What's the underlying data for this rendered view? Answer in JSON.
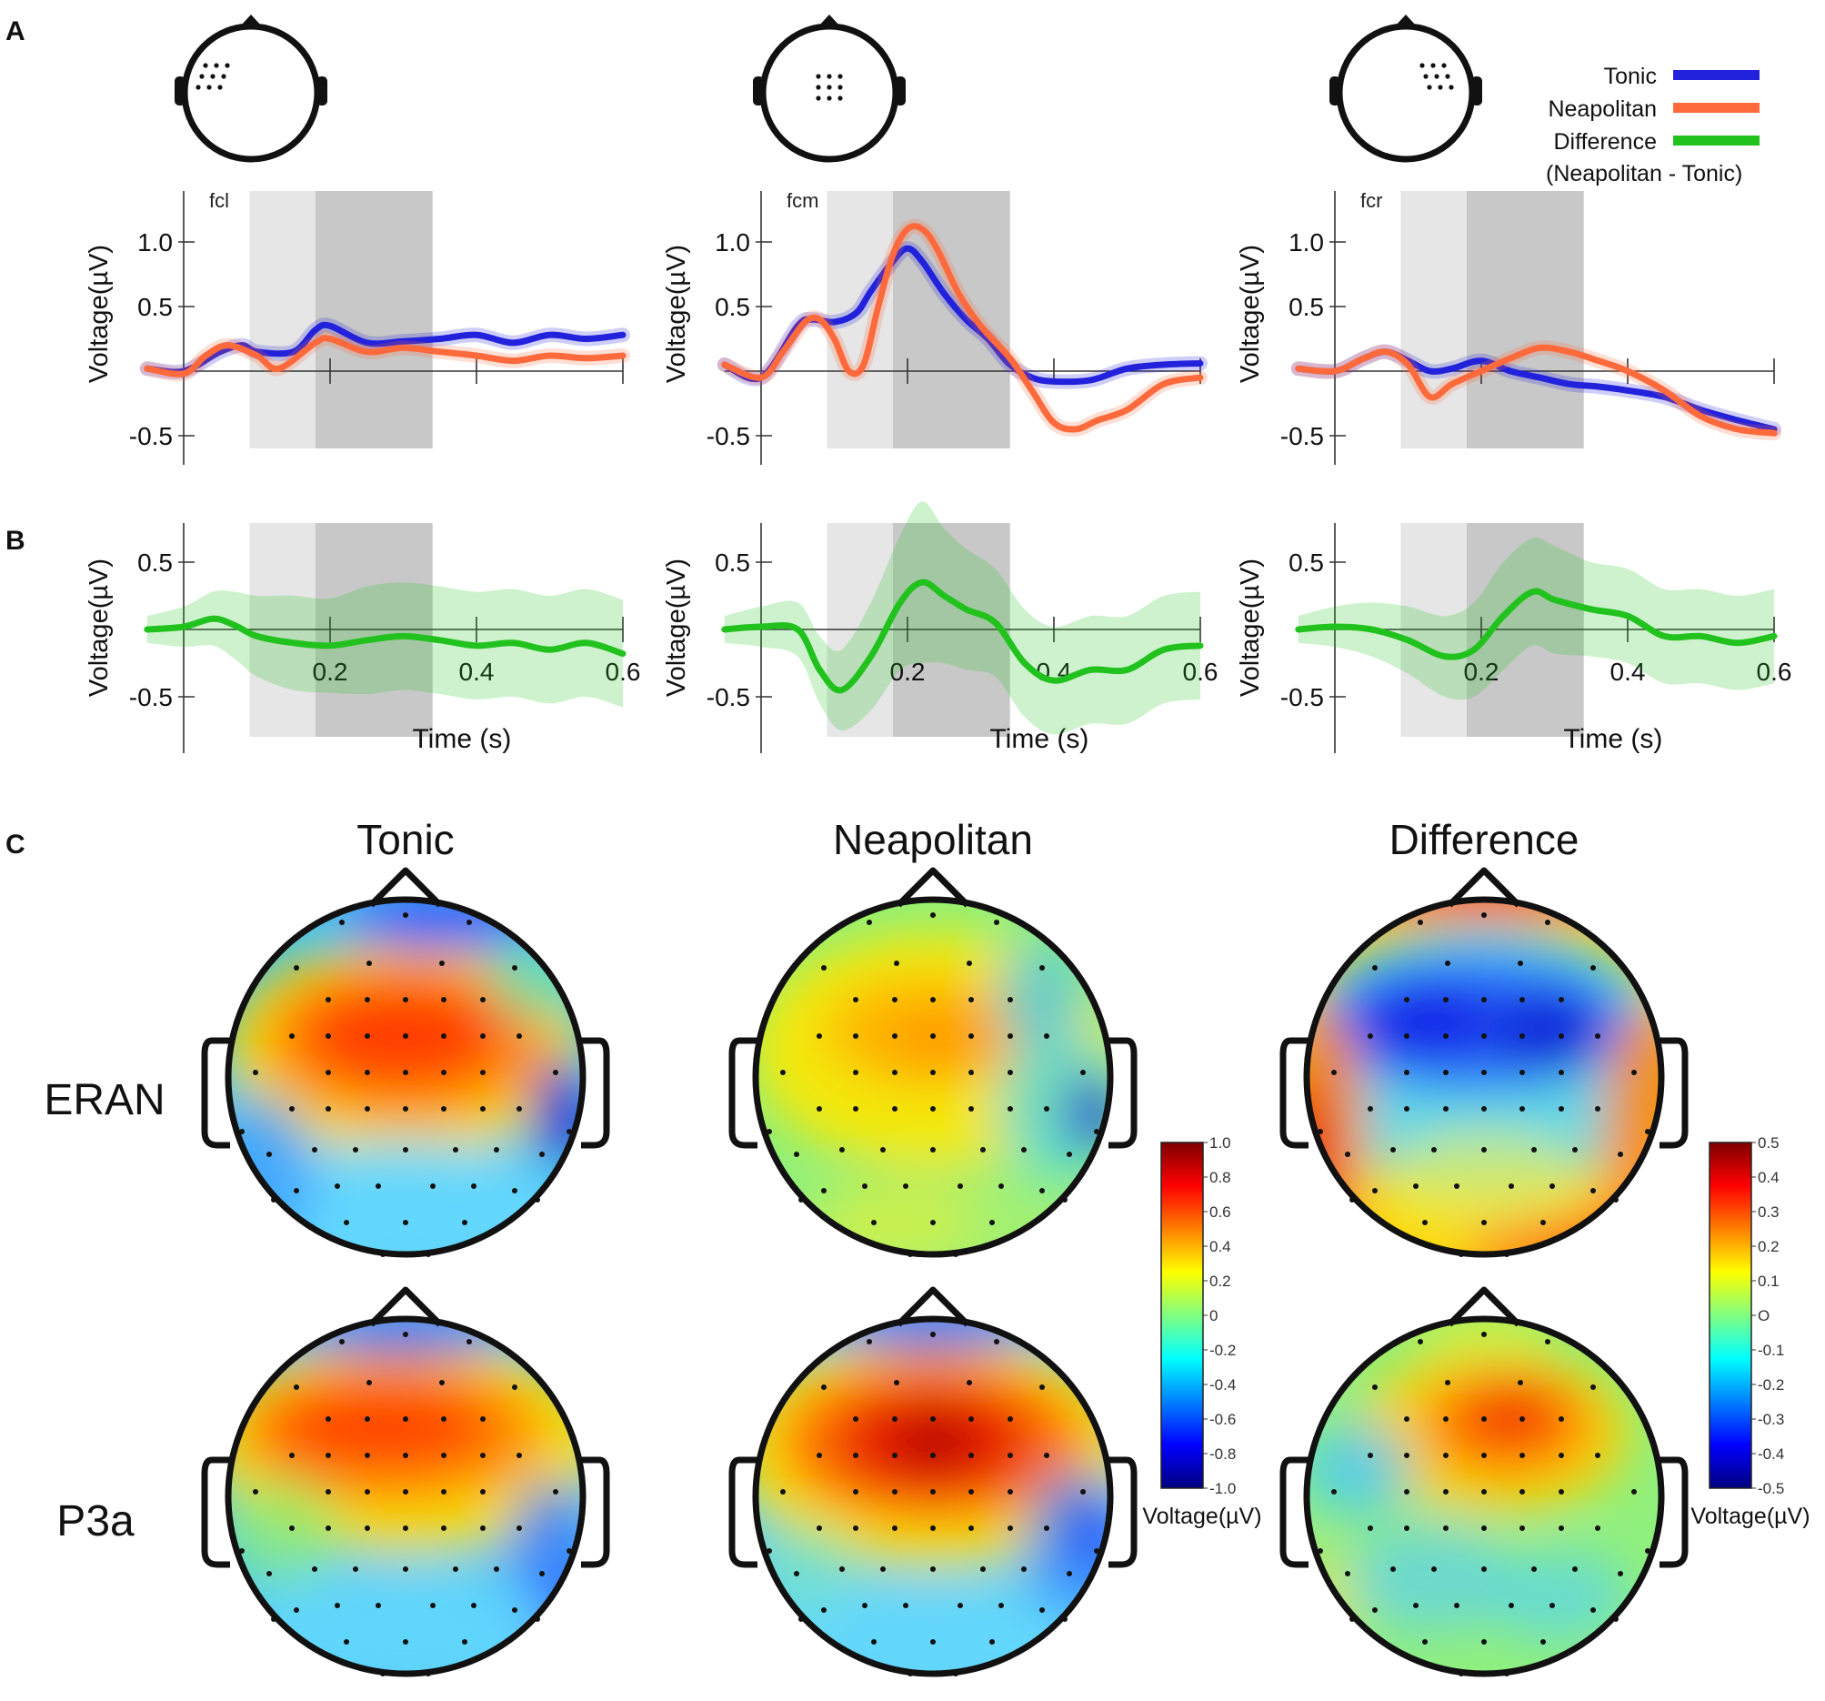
{
  "panel_labels": [
    "A",
    "B",
    "C"
  ],
  "legend": {
    "tonic": "Tonic",
    "neapolitan": "Neapolitan",
    "difference": "Difference",
    "difference_note": "(Neapolitan - Tonic)"
  },
  "colors": {
    "tonic": "#2222dd",
    "neapolitan": "#ff6a3d",
    "difference": "#22c21e",
    "window_light": "#e6e6e6",
    "window_dark": "#c8c8c8"
  },
  "topo_titles": [
    "Tonic",
    "Neapolitan",
    "Difference"
  ],
  "row_labels": [
    "ERAN",
    "P3a"
  ],
  "colorbars": [
    {
      "labels": [
        "1.0",
        "0.8",
        "0.6",
        "0.4",
        "0.2",
        "0",
        "-0.2",
        "-0.4",
        "-0.6",
        "-0.8",
        "-1.0"
      ],
      "unit": "Voltage(µV)"
    },
    {
      "labels": [
        "0.5",
        "0.4",
        "0.3",
        "0.2",
        "0.1",
        "O",
        "-0.1",
        "-0.2",
        "-0.3",
        "-0.4",
        "-0.5"
      ],
      "unit": "Voltage(µV)"
    }
  ],
  "chart_data": [
    {
      "type": "line",
      "panel": "A",
      "region": "fcl",
      "xlabel": "",
      "ylabel": "Voltage(µV)",
      "xlim": [
        -0.05,
        0.6
      ],
      "ylim": [
        -0.6,
        1.4
      ],
      "yticks": [
        "1.0",
        "0.5",
        "-0.5"
      ],
      "yticks_values": [
        1.0,
        0.5,
        -0.5
      ],
      "xticks": [
        0.2,
        0.4,
        0.6
      ],
      "windows": [
        [
          0.09,
          0.18
        ],
        [
          0.18,
          0.34
        ]
      ],
      "series": [
        {
          "name": "Tonic",
          "x": [
            -0.05,
            0,
            0.05,
            0.08,
            0.1,
            0.15,
            0.18,
            0.2,
            0.25,
            0.3,
            0.35,
            0.4,
            0.45,
            0.5,
            0.55,
            0.6
          ],
          "y": [
            0.02,
            0,
            0.15,
            0.2,
            0.15,
            0.15,
            0.32,
            0.35,
            0.22,
            0.23,
            0.25,
            0.28,
            0.22,
            0.28,
            0.25,
            0.28
          ]
        },
        {
          "name": "Neapolitan",
          "x": [
            -0.05,
            0,
            0.03,
            0.06,
            0.1,
            0.13,
            0.18,
            0.2,
            0.25,
            0.3,
            0.35,
            0.4,
            0.45,
            0.5,
            0.55,
            0.6
          ],
          "y": [
            0.02,
            -0.02,
            0.12,
            0.2,
            0.12,
            0.02,
            0.22,
            0.25,
            0.15,
            0.18,
            0.15,
            0.12,
            0.08,
            0.12,
            0.1,
            0.12
          ]
        }
      ]
    },
    {
      "type": "line",
      "panel": "A",
      "region": "fcm",
      "xlabel": "",
      "ylabel": "Voltage(µV)",
      "xlim": [
        -0.05,
        0.6
      ],
      "ylim": [
        -0.6,
        1.4
      ],
      "yticks": [
        "1.0",
        "0.5",
        "-0.5"
      ],
      "yticks_values": [
        1.0,
        0.5,
        -0.5
      ],
      "xticks": [
        0.2,
        0.4,
        0.6
      ],
      "windows": [
        [
          0.09,
          0.18
        ],
        [
          0.18,
          0.34
        ]
      ],
      "series": [
        {
          "name": "Tonic",
          "x": [
            -0.05,
            0,
            0.05,
            0.07,
            0.1,
            0.13,
            0.15,
            0.18,
            0.2,
            0.22,
            0.25,
            0.28,
            0.31,
            0.34,
            0.37,
            0.4,
            0.45,
            0.5,
            0.55,
            0.6
          ],
          "y": [
            0.05,
            -0.05,
            0.35,
            0.4,
            0.38,
            0.45,
            0.62,
            0.85,
            0.95,
            0.85,
            0.6,
            0.4,
            0.25,
            0.05,
            -0.05,
            -0.08,
            -0.07,
            0.02,
            0.05,
            0.06
          ]
        },
        {
          "name": "Neapolitan",
          "x": [
            -0.05,
            0,
            0.03,
            0.06,
            0.08,
            0.1,
            0.12,
            0.14,
            0.16,
            0.18,
            0.2,
            0.22,
            0.24,
            0.27,
            0.3,
            0.34,
            0.37,
            0.4,
            0.43,
            0.46,
            0.5,
            0.55,
            0.6
          ],
          "y": [
            0.05,
            -0.05,
            0.15,
            0.38,
            0.4,
            0.25,
            0.0,
            0.05,
            0.5,
            0.9,
            1.1,
            1.1,
            0.95,
            0.6,
            0.35,
            0.1,
            -0.15,
            -0.4,
            -0.45,
            -0.38,
            -0.3,
            -0.1,
            -0.05
          ]
        }
      ]
    },
    {
      "type": "line",
      "panel": "A",
      "region": "fcr",
      "xlabel": "",
      "ylabel": "Voltage(µV)",
      "xlim": [
        -0.05,
        0.6
      ],
      "ylim": [
        -0.6,
        1.4
      ],
      "yticks": [
        "1.0",
        "0.5",
        "-0.5"
      ],
      "yticks_values": [
        1.0,
        0.5,
        -0.5
      ],
      "xticks": [
        0.2,
        0.4,
        0.6
      ],
      "windows": [
        [
          0.09,
          0.18
        ],
        [
          0.18,
          0.34
        ]
      ],
      "series": [
        {
          "name": "Tonic",
          "x": [
            -0.05,
            0,
            0.04,
            0.07,
            0.1,
            0.13,
            0.16,
            0.2,
            0.24,
            0.28,
            0.32,
            0.36,
            0.4,
            0.45,
            0.5,
            0.55,
            0.6
          ],
          "y": [
            0.02,
            0,
            0.1,
            0.15,
            0.08,
            0,
            0.02,
            0.08,
            0,
            -0.05,
            -0.1,
            -0.12,
            -0.15,
            -0.2,
            -0.3,
            -0.38,
            -0.45
          ]
        },
        {
          "name": "Neapolitan",
          "x": [
            -0.05,
            0,
            0.04,
            0.07,
            0.1,
            0.13,
            0.16,
            0.2,
            0.24,
            0.28,
            0.32,
            0.36,
            0.4,
            0.45,
            0.5,
            0.55,
            0.6
          ],
          "y": [
            0.02,
            0,
            0.1,
            0.15,
            0.05,
            -0.2,
            -0.1,
            0.0,
            0.1,
            0.18,
            0.15,
            0.08,
            0.0,
            -0.15,
            -0.35,
            -0.45,
            -0.48
          ]
        }
      ]
    },
    {
      "type": "line",
      "panel": "B",
      "region": "fcl",
      "xlabel": "Time (s)",
      "ylabel": "Voltage(µV)",
      "xlim": [
        -0.05,
        0.6
      ],
      "ylim": [
        -0.8,
        0.8
      ],
      "yticks": [
        "0.5",
        "-0.5"
      ],
      "yticks_values": [
        0.5,
        -0.5
      ],
      "xticks": [
        0.2,
        0.4,
        0.6
      ],
      "xtick_labels": [
        "0.2",
        "0.4",
        "0.6"
      ],
      "windows": [
        [
          0.09,
          0.18
        ],
        [
          0.18,
          0.34
        ]
      ],
      "series": [
        {
          "name": "Difference",
          "x": [
            -0.05,
            0,
            0.04,
            0.07,
            0.1,
            0.15,
            0.2,
            0.25,
            0.3,
            0.35,
            0.4,
            0.45,
            0.5,
            0.55,
            0.6
          ],
          "y": [
            0,
            0.02,
            0.08,
            0.03,
            -0.05,
            -0.1,
            -0.12,
            -0.08,
            -0.05,
            -0.08,
            -0.12,
            -0.1,
            -0.15,
            -0.1,
            -0.18
          ],
          "band": [
            0.1,
            0.15,
            0.2,
            0.25,
            0.3,
            0.35,
            0.35,
            0.4,
            0.4,
            0.4,
            0.4,
            0.4,
            0.4,
            0.4,
            0.4
          ]
        }
      ]
    },
    {
      "type": "line",
      "panel": "B",
      "region": "fcm",
      "xlabel": "Time (s)",
      "ylabel": "Voltage(µV)",
      "xlim": [
        -0.05,
        0.6
      ],
      "ylim": [
        -0.8,
        0.8
      ],
      "yticks": [
        "0.5",
        "-0.5"
      ],
      "yticks_values": [
        0.5,
        -0.5
      ],
      "xticks": [
        0.2,
        0.4,
        0.6
      ],
      "xtick_labels": [
        "0.2",
        "0.4",
        "0.6"
      ],
      "windows": [
        [
          0.09,
          0.18
        ],
        [
          0.18,
          0.34
        ]
      ],
      "series": [
        {
          "name": "Difference",
          "x": [
            -0.05,
            0,
            0.05,
            0.08,
            0.11,
            0.15,
            0.19,
            0.22,
            0.25,
            0.28,
            0.32,
            0.36,
            0.4,
            0.45,
            0.5,
            0.55,
            0.6
          ],
          "y": [
            0,
            0.02,
            0,
            -0.3,
            -0.45,
            -0.2,
            0.2,
            0.35,
            0.25,
            0.15,
            0.05,
            -0.25,
            -0.38,
            -0.3,
            -0.3,
            -0.15,
            -0.12
          ],
          "band": [
            0.1,
            0.15,
            0.2,
            0.25,
            0.3,
            0.4,
            0.5,
            0.6,
            0.5,
            0.45,
            0.4,
            0.4,
            0.4,
            0.4,
            0.4,
            0.4,
            0.4
          ]
        }
      ]
    },
    {
      "type": "line",
      "panel": "B",
      "region": "fcr",
      "xlabel": "Time (s)",
      "ylabel": "Voltage(µV)",
      "xlim": [
        -0.05,
        0.6
      ],
      "ylim": [
        -0.8,
        0.8
      ],
      "yticks": [
        "0.5",
        "-0.5"
      ],
      "yticks_values": [
        0.5,
        -0.5
      ],
      "xticks": [
        0.2,
        0.4,
        0.6
      ],
      "xtick_labels": [
        "0.2",
        "0.4",
        "0.6"
      ],
      "windows": [
        [
          0.09,
          0.18
        ],
        [
          0.18,
          0.34
        ]
      ],
      "series": [
        {
          "name": "Difference",
          "x": [
            -0.05,
            0,
            0.05,
            0.1,
            0.15,
            0.19,
            0.23,
            0.27,
            0.3,
            0.35,
            0.4,
            0.45,
            0.5,
            0.55,
            0.6
          ],
          "y": [
            0,
            0.02,
            0,
            -0.08,
            -0.2,
            -0.15,
            0.1,
            0.28,
            0.22,
            0.15,
            0.1,
            -0.05,
            -0.05,
            -0.1,
            -0.05
          ],
          "band": [
            0.1,
            0.15,
            0.2,
            0.25,
            0.3,
            0.35,
            0.4,
            0.4,
            0.4,
            0.35,
            0.35,
            0.35,
            0.35,
            0.35,
            0.35
          ]
        }
      ]
    },
    {
      "type": "heatmap",
      "panel": "C",
      "topographies": [
        {
          "title": "Tonic",
          "component": "ERAN",
          "scale": "±1.0",
          "pattern": "frontocentral positive, right-temporal negative"
        },
        {
          "title": "Neapolitan",
          "component": "ERAN",
          "scale": "±1.0",
          "pattern": "weak frontocentral positive, right-temporal negative"
        },
        {
          "title": "Difference",
          "component": "ERAN",
          "scale": "±0.5",
          "pattern": "frontal negative (ERAN), posterior/temporal positive"
        },
        {
          "title": "Tonic",
          "component": "P3a",
          "scale": "±1.0",
          "pattern": "frontocentral positive"
        },
        {
          "title": "Neapolitan",
          "component": "P3a",
          "scale": "±1.0",
          "pattern": "strong frontocentral positive"
        },
        {
          "title": "Difference",
          "component": "P3a",
          "scale": "±0.5",
          "pattern": "central-frontal positive (P3a)"
        }
      ]
    }
  ]
}
